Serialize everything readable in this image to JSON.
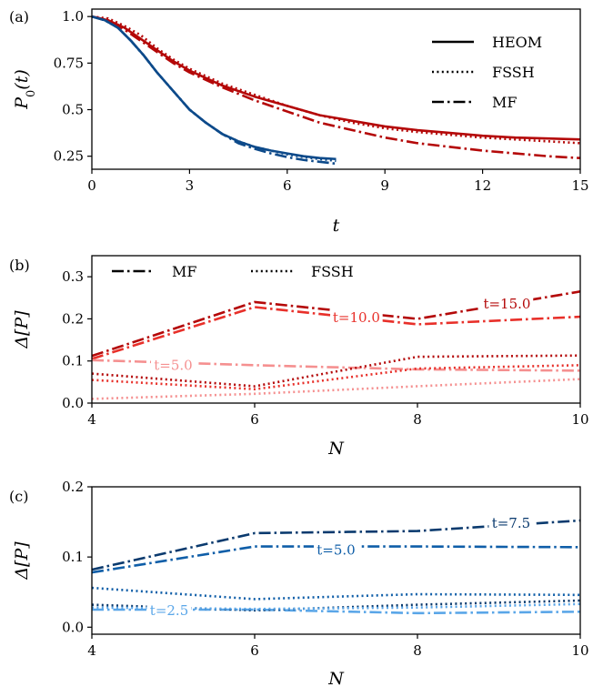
{
  "chart_data": [
    {
      "panel_label": "(a)",
      "type": "line",
      "xlabel": "t",
      "ylabel": "P_0(t)",
      "xlim": [
        0,
        15
      ],
      "ylim": [
        0.18,
        1.04
      ],
      "xticks": [
        "0",
        "3",
        "6",
        "9",
        "12",
        "15"
      ],
      "yticks": [
        "0.25",
        "0.5",
        "0.75",
        "1.0"
      ],
      "legend": {
        "placement": "top-right",
        "entries": [
          {
            "label": "HEOM",
            "style": "solid"
          },
          {
            "label": "FSSH",
            "style": "dotted"
          },
          {
            "label": "MF",
            "style": "dashdot"
          }
        ]
      },
      "series": [
        {
          "color": "#b40808",
          "style": "solid",
          "x": [
            0,
            0.5,
            1,
            1.5,
            2,
            2.5,
            3,
            4,
            5,
            6,
            7,
            8,
            9,
            10,
            11,
            12,
            13,
            14,
            15
          ],
          "y": [
            1.0,
            0.98,
            0.94,
            0.88,
            0.82,
            0.76,
            0.71,
            0.63,
            0.57,
            0.52,
            0.47,
            0.44,
            0.41,
            0.39,
            0.375,
            0.36,
            0.35,
            0.345,
            0.34
          ]
        },
        {
          "color": "#b40808",
          "style": "dotted",
          "x": [
            0,
            0.5,
            1,
            1.5,
            2,
            2.5,
            3,
            4,
            5,
            6,
            7,
            8,
            9,
            10,
            11,
            12,
            13,
            14,
            15
          ],
          "y": [
            1.0,
            0.99,
            0.95,
            0.9,
            0.83,
            0.77,
            0.72,
            0.64,
            0.58,
            0.52,
            0.47,
            0.43,
            0.4,
            0.38,
            0.365,
            0.35,
            0.34,
            0.33,
            0.32
          ]
        },
        {
          "color": "#b40808",
          "style": "dashdot",
          "x": [
            0,
            0.5,
            1,
            1.5,
            2,
            2.5,
            3,
            4,
            5,
            6,
            7,
            8,
            9,
            10,
            11,
            12,
            13,
            14,
            15
          ],
          "y": [
            1.0,
            0.98,
            0.93,
            0.87,
            0.81,
            0.75,
            0.7,
            0.62,
            0.55,
            0.49,
            0.43,
            0.39,
            0.35,
            0.32,
            0.3,
            0.28,
            0.265,
            0.25,
            0.24
          ]
        },
        {
          "color": "#0d4a8a",
          "style": "solid",
          "x": [
            0,
            0.4,
            0.8,
            1.2,
            1.6,
            2,
            2.5,
            3,
            3.5,
            4,
            4.5,
            5,
            5.5,
            6,
            6.5,
            7,
            7.5
          ],
          "y": [
            1.0,
            0.98,
            0.94,
            0.87,
            0.79,
            0.7,
            0.6,
            0.5,
            0.43,
            0.37,
            0.33,
            0.3,
            0.28,
            0.265,
            0.25,
            0.24,
            0.235
          ]
        },
        {
          "color": "#0d4a8a",
          "style": "dotted",
          "x": [
            0,
            0.4,
            0.8,
            1.2,
            1.6,
            2,
            2.5,
            3,
            3.5,
            4,
            4.5,
            5,
            5.5,
            6,
            6.5,
            7,
            7.5
          ],
          "y": [
            1.0,
            0.98,
            0.94,
            0.87,
            0.79,
            0.7,
            0.6,
            0.5,
            0.43,
            0.37,
            0.33,
            0.3,
            0.28,
            0.26,
            0.245,
            0.235,
            0.225
          ]
        },
        {
          "color": "#0d4a8a",
          "style": "dashdot",
          "x": [
            0,
            0.4,
            0.8,
            1.2,
            1.6,
            2,
            2.5,
            3,
            3.5,
            4,
            4.5,
            5,
            5.5,
            6,
            6.5,
            7,
            7.5
          ],
          "y": [
            1.0,
            0.98,
            0.94,
            0.87,
            0.79,
            0.7,
            0.6,
            0.5,
            0.43,
            0.37,
            0.32,
            0.29,
            0.265,
            0.245,
            0.23,
            0.22,
            0.21
          ]
        }
      ]
    },
    {
      "panel_label": "(b)",
      "type": "line",
      "xlabel": "N",
      "ylabel": "Δ[P]",
      "xlim": [
        4,
        10
      ],
      "ylim": [
        0,
        0.35
      ],
      "xticks": [
        "4",
        "6",
        "8",
        "10"
      ],
      "yticks": [
        "0.0",
        "0.1",
        "0.2",
        "0.3"
      ],
      "legend": {
        "placement": "top-left",
        "entries": [
          {
            "label": "MF",
            "style": "dashdot"
          },
          {
            "label": "FSSH",
            "style": "dotted"
          }
        ]
      },
      "annotations": [
        {
          "text": "t=5.0",
          "x": 5.0,
          "y": 0.09,
          "color": "#f59090"
        },
        {
          "text": "t=10.0",
          "x": 7.25,
          "y": 0.203,
          "color": "#e8302a"
        },
        {
          "text": "t=15.0",
          "x": 9.1,
          "y": 0.235,
          "color": "#b40808"
        }
      ],
      "series": [
        {
          "color": "#b40808",
          "style": "dashdot",
          "x": [
            4,
            6,
            8,
            10
          ],
          "y": [
            0.112,
            0.24,
            0.2,
            0.265
          ]
        },
        {
          "color": "#e8302a",
          "style": "dashdot",
          "x": [
            4,
            6,
            8,
            10
          ],
          "y": [
            0.105,
            0.228,
            0.187,
            0.205
          ]
        },
        {
          "color": "#f59090",
          "style": "dashdot",
          "x": [
            4,
            6,
            8,
            10
          ],
          "y": [
            0.102,
            0.09,
            0.08,
            0.077
          ]
        },
        {
          "color": "#b40808",
          "style": "dotted",
          "x": [
            4,
            6,
            8,
            10
          ],
          "y": [
            0.07,
            0.04,
            0.11,
            0.113
          ]
        },
        {
          "color": "#e8302a",
          "style": "dotted",
          "x": [
            4,
            6,
            8,
            10
          ],
          "y": [
            0.055,
            0.033,
            0.082,
            0.09
          ]
        },
        {
          "color": "#f59090",
          "style": "dotted",
          "x": [
            4,
            6,
            8,
            10
          ],
          "y": [
            0.01,
            0.022,
            0.04,
            0.057
          ]
        }
      ]
    },
    {
      "panel_label": "(c)",
      "type": "line",
      "xlabel": "N",
      "ylabel": "Δ[P]",
      "xlim": [
        4,
        10
      ],
      "ylim": [
        -0.01,
        0.2
      ],
      "xticks": [
        "4",
        "6",
        "8",
        "10"
      ],
      "yticks": [
        "0.0",
        "0.1",
        "0.2"
      ],
      "annotations": [
        {
          "text": "t=2.5",
          "x": 4.95,
          "y": 0.024,
          "color": "#5aa6e8"
        },
        {
          "text": "t=5.0",
          "x": 7.0,
          "y": 0.11,
          "color": "#0f5ea8"
        },
        {
          "text": "t=7.5",
          "x": 9.15,
          "y": 0.148,
          "color": "#0a3a6e"
        }
      ],
      "series": [
        {
          "color": "#0a3a6e",
          "style": "dashdot",
          "x": [
            4,
            6,
            8,
            10
          ],
          "y": [
            0.082,
            0.134,
            0.137,
            0.152
          ]
        },
        {
          "color": "#0f5ea8",
          "style": "dashdot",
          "x": [
            4,
            6,
            8,
            10
          ],
          "y": [
            0.078,
            0.115,
            0.115,
            0.114
          ]
        },
        {
          "color": "#5aa6e8",
          "style": "dashdot",
          "x": [
            4,
            6,
            8,
            10
          ],
          "y": [
            0.025,
            0.025,
            0.02,
            0.022
          ]
        },
        {
          "color": "#0a3a6e",
          "style": "dotted",
          "x": [
            4,
            6,
            8,
            10
          ],
          "y": [
            0.032,
            0.024,
            0.032,
            0.038
          ]
        },
        {
          "color": "#0f5ea8",
          "style": "dotted",
          "x": [
            4,
            6,
            8,
            10
          ],
          "y": [
            0.056,
            0.04,
            0.047,
            0.046
          ]
        },
        {
          "color": "#5aa6e8",
          "style": "dotted",
          "x": [
            4,
            6,
            8,
            10
          ],
          "y": [
            0.028,
            0.026,
            0.028,
            0.033
          ]
        }
      ]
    }
  ]
}
